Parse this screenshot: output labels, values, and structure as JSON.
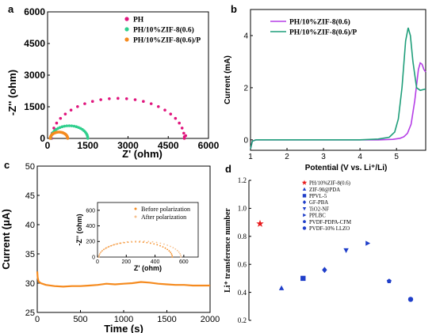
{
  "chart_data": [
    {
      "panel": "a",
      "type": "scatter",
      "xlabel": "Z' (ohm)",
      "ylabel": "-Z'' (ohm)",
      "xlim": [
        0,
        6000
      ],
      "ylim": [
        0,
        6000
      ],
      "xticks": [
        "0",
        "1500",
        "3000",
        "4500",
        "6000"
      ],
      "yticks": [
        "0",
        "1500",
        "3000",
        "4500",
        "6000"
      ],
      "legend_position": "top-right",
      "colors": {
        "PH": "#e0157d",
        "PH/10%ZIF-8(0.6)": "#2ecf8c",
        "PH/10%ZIF-8(0.6)/P": "#f58a1e"
      },
      "series": [
        {
          "name": "PH",
          "semicircle": {
            "start": 150,
            "end": 5100,
            "height": 1900
          },
          "tail": [
            [
              5100,
              80
            ],
            [
              5150,
              130
            ]
          ]
        },
        {
          "name": "PH/10%ZIF-8(0.6)",
          "semicircle": {
            "start": 120,
            "end": 1500,
            "height": 600
          },
          "tail": []
        },
        {
          "name": "PH/10%ZIF-8(0.6)/P",
          "semicircle": {
            "start": 100,
            "end": 750,
            "height": 300
          },
          "tail": []
        }
      ]
    },
    {
      "panel": "b",
      "type": "line",
      "xlabel": "Potential (V vs. Li⁺/Li)",
      "ylabel": "Current (mA)",
      "xlim": [
        1,
        5.8
      ],
      "ylim": [
        -0.4,
        5
      ],
      "xticks": [
        "1",
        "2",
        "3",
        "4",
        "5"
      ],
      "yticks": [
        "0",
        "2",
        "4"
      ],
      "legend_position": "top-right",
      "series": [
        {
          "name": "PH/10%ZIF-8(0.6)",
          "color": "#b53ee6",
          "x": [
            1.0,
            1.05,
            1.15,
            1.3,
            2.0,
            3.0,
            4.0,
            4.5,
            4.9,
            5.1,
            5.2,
            5.3,
            5.4,
            5.5,
            5.6,
            5.65,
            5.7,
            5.75,
            5.8
          ],
          "y": [
            -0.35,
            -0.05,
            0.0,
            0.0,
            0.0,
            0.0,
            0.0,
            0.0,
            0.02,
            0.06,
            0.12,
            0.25,
            0.6,
            1.5,
            2.7,
            2.95,
            2.9,
            2.7,
            2.6
          ]
        },
        {
          "name": "PH/10%ZIF-8(0.6)/P",
          "color": "#1f9e7a",
          "x": [
            1.0,
            1.05,
            1.15,
            1.3,
            2.0,
            3.0,
            4.0,
            4.5,
            4.8,
            4.95,
            5.05,
            5.15,
            5.25,
            5.32,
            5.38,
            5.45,
            5.55,
            5.65,
            5.8
          ],
          "y": [
            -0.35,
            -0.05,
            0.0,
            0.0,
            0.0,
            0.0,
            0.0,
            0.03,
            0.1,
            0.3,
            0.8,
            2.0,
            3.8,
            4.3,
            4.0,
            3.0,
            2.0,
            1.9,
            1.95
          ]
        }
      ]
    },
    {
      "panel": "c",
      "type": "line",
      "xlabel": "Time (s)",
      "ylabel": "Current (μA)",
      "xlim": [
        0,
        2000
      ],
      "ylim": [
        25,
        50
      ],
      "xticks": [
        "0",
        "500",
        "1000",
        "1500",
        "2000"
      ],
      "yticks": [
        "25",
        "30",
        "35",
        "40",
        "45",
        "50"
      ],
      "series": [
        {
          "name": "current",
          "color": "#f58a1e",
          "x": [
            0,
            5,
            15,
            40,
            100,
            200,
            300,
            400,
            500,
            600,
            700,
            800,
            900,
            1000,
            1100,
            1200,
            1300,
            1400,
            1500,
            1600,
            1700,
            1800,
            1900,
            2000
          ],
          "y": [
            32.0,
            31.0,
            30.3,
            30.0,
            29.7,
            29.5,
            29.4,
            29.5,
            29.5,
            29.6,
            29.7,
            29.9,
            29.8,
            29.9,
            30.0,
            30.2,
            30.1,
            29.9,
            29.8,
            29.7,
            29.7,
            29.6,
            29.6,
            29.6
          ]
        }
      ],
      "inset": {
        "xlabel": "Z' (ohm)",
        "ylabel": "-Z'' (ohm)",
        "xlim": [
          0,
          700
        ],
        "ylim": [
          0,
          700
        ],
        "xticks": [
          "0",
          "200",
          "400",
          "600"
        ],
        "yticks": [
          "0",
          "200",
          "400",
          "600"
        ],
        "legend_position": "top-right",
        "series": [
          {
            "name": "Before polarization",
            "color": "#f58a1e",
            "semicircle": {
              "start": 10,
              "end": 520,
              "height": 195
            }
          },
          {
            "name": "After polarization",
            "color": "#f6c08e",
            "semicircle": {
              "start": 10,
              "end": 580,
              "height": 205
            }
          }
        ]
      }
    },
    {
      "panel": "d",
      "type": "scatter",
      "ylabel": "Li⁺ transference number",
      "ylim": [
        0.2,
        1.2
      ],
      "yticks": [
        "0.2",
        "0.4",
        "0.6",
        "0.8",
        "1.0",
        "1.2"
      ],
      "legend_position": "top-right",
      "series": [
        {
          "name": "PH/10%ZIF-8(0.6)",
          "marker": "star",
          "color": "#e8191b",
          "value": 0.89
        },
        {
          "name": "ZIF-90@PDA",
          "marker": "triangle-up",
          "color": "#1f3ec9",
          "value": 0.43
        },
        {
          "name": "PPVL-5",
          "marker": "square",
          "color": "#1f3ec9",
          "value": 0.5
        },
        {
          "name": "GF-PBA",
          "marker": "diamond",
          "color": "#1f3ec9",
          "value": 0.56
        },
        {
          "name": "TiO2-NF",
          "marker": "triangle-down",
          "color": "#1f3ec9",
          "value": 0.7
        },
        {
          "name": "PPLBC",
          "marker": "triangle-right",
          "color": "#1f3ec9",
          "value": 0.75
        },
        {
          "name": "PVDF-PDPA-CFM",
          "marker": "pentagon",
          "color": "#1f3ec9",
          "value": 0.48
        },
        {
          "name": "PVDF-10% LLZO",
          "marker": "circle",
          "color": "#1f3ec9",
          "value": 0.35
        }
      ]
    }
  ]
}
